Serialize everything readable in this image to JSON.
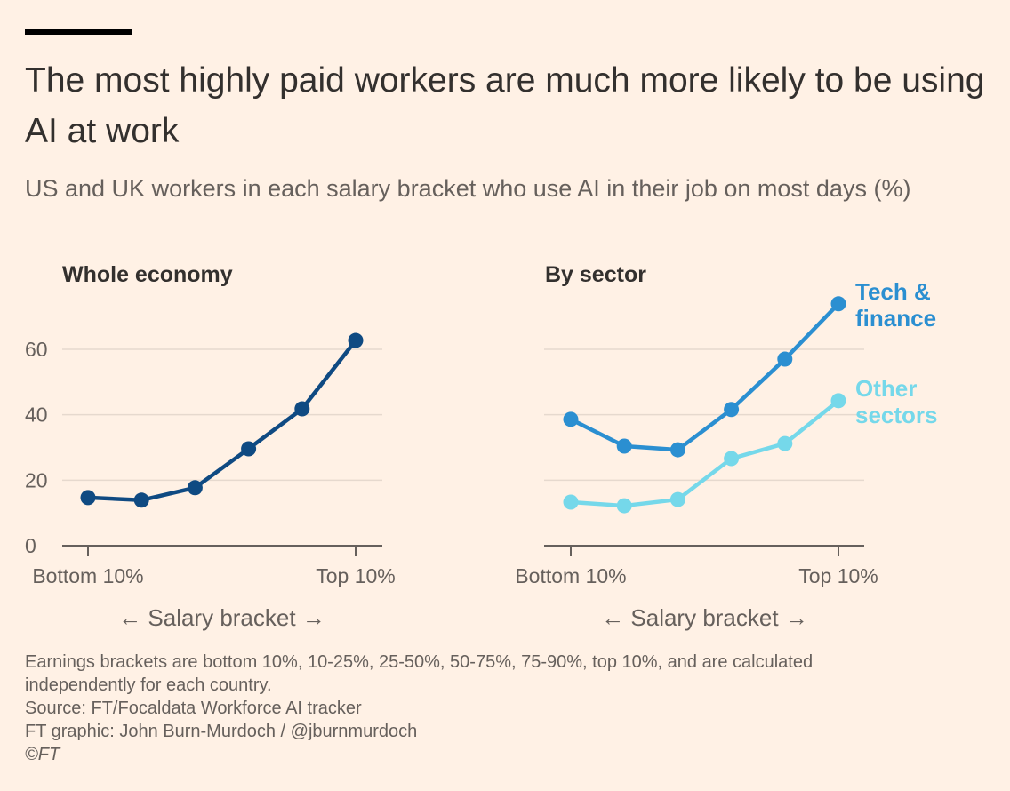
{
  "title": "The most highly paid workers are much more likely to be using AI at work",
  "subtitle": "US and UK workers in each salary bracket who use AI in their job on most days (%)",
  "notes": [
    "Earnings brackets are bottom 10%, 10-25%, 25-50%, 50-75%, 75-90%, top 10%, and are calculated",
    "independently for each country.",
    "Source: FT/Focaldata Workforce AI tracker",
    "FT graphic: John Burn-Murdoch / @jburnmurdoch",
    "©FT"
  ],
  "colors": {
    "background": "#fff1e5",
    "whole": "#0f4a82",
    "tech": "#2b8fd1",
    "other": "#75d8ea"
  },
  "chart_data": [
    {
      "type": "line",
      "title": "Whole economy",
      "categories": [
        "Bottom 10%",
        "10-25%",
        "25-50%",
        "50-75%",
        "75-90%",
        "Top 10%"
      ],
      "x_tick_labels": [
        "Bottom 10%",
        "Top 10%"
      ],
      "xlabel": "← Salary bracket →",
      "ylim": [
        0,
        70
      ],
      "y_ticks": [
        0,
        20,
        40,
        60
      ],
      "series": [
        {
          "name": "Whole economy",
          "color": "#0f4a82",
          "values": [
            14.7,
            13.9,
            17.7,
            29.6,
            41.8,
            62.7
          ]
        }
      ]
    },
    {
      "type": "line",
      "title": "By sector",
      "categories": [
        "Bottom 10%",
        "10-25%",
        "25-50%",
        "50-75%",
        "75-90%",
        "Top 10%"
      ],
      "x_tick_labels": [
        "Bottom 10%",
        "Top 10%"
      ],
      "xlabel": "← Salary bracket →",
      "ylim": [
        0,
        70
      ],
      "y_ticks": [
        0,
        20,
        40,
        60
      ],
      "series": [
        {
          "name": "Tech & finance",
          "label_lines": [
            "Tech &",
            "finance"
          ],
          "color": "#2b8fd1",
          "values": [
            38.6,
            30.4,
            29.3,
            41.6,
            57.0,
            73.9
          ]
        },
        {
          "name": "Other sectors",
          "label_lines": [
            "Other",
            "sectors"
          ],
          "color": "#75d8ea",
          "values": [
            13.3,
            12.2,
            14.1,
            26.6,
            31.2,
            44.3
          ]
        }
      ]
    }
  ]
}
